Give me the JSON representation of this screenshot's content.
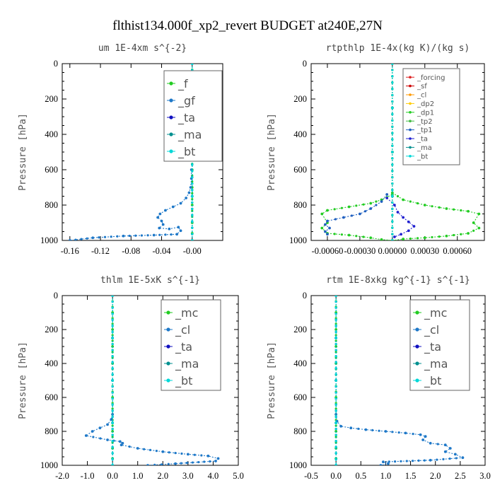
{
  "figure_title": "flthist134.000f_xp2_revert  BUDGET at240E,27N",
  "chart_data": [
    {
      "type": "line",
      "title": "um  1E-4xm s^{-2}",
      "ylabel": "Pressure [hPa]",
      "xlim": [
        -0.17,
        0.04
      ],
      "ylim": [
        1000,
        0
      ],
      "xticks": [
        -0.16,
        -0.12,
        -0.08,
        -0.04,
        0.0
      ],
      "xtick_labels": [
        "-0.16",
        "-0.12",
        "-0.08",
        "-0.04",
        "-0.00"
      ],
      "yticks": [
        0,
        200,
        400,
        600,
        800,
        1000
      ],
      "legend_position": "top-right",
      "series": [
        {
          "name": "_f",
          "color": "#22cc22",
          "x": [
            0,
            0,
            0,
            0,
            0,
            0,
            0,
            0,
            0,
            0,
            0,
            0
          ],
          "y": [
            0,
            100,
            200,
            300,
            400,
            500,
            600,
            700,
            800,
            900,
            960,
            1000
          ]
        },
        {
          "name": "_gf",
          "color": "#1e78c8",
          "x": [
            -0.001,
            -0.001,
            -0.002,
            -0.004,
            -0.008,
            -0.015,
            -0.025,
            -0.035,
            -0.042,
            -0.045,
            -0.04,
            -0.038,
            -0.043,
            -0.03,
            -0.018,
            -0.015,
            -0.02,
            -0.05,
            -0.09,
            -0.13,
            -0.16
          ],
          "y": [
            600,
            650,
            700,
            730,
            760,
            790,
            810,
            830,
            850,
            870,
            890,
            910,
            930,
            935,
            925,
            945,
            965,
            970,
            975,
            985,
            1000
          ]
        },
        {
          "name": "_ta",
          "color": "#1010c0",
          "x": [
            0,
            0,
            0,
            0,
            0
          ],
          "y": [
            0,
            250,
            500,
            750,
            1000
          ]
        },
        {
          "name": "_ma",
          "color": "#009090",
          "x": [
            0,
            0,
            0,
            0,
            0
          ],
          "y": [
            0,
            250,
            500,
            750,
            1000
          ]
        },
        {
          "name": "_bt",
          "color": "#00d8d8",
          "x": [
            0,
            0,
            0,
            0,
            0
          ],
          "y": [
            0,
            250,
            500,
            750,
            1000
          ]
        }
      ]
    },
    {
      "type": "line",
      "title": "rtpthlp  1E-4x(kg K)/(kg s)",
      "ylabel": "Pressure [hPa]",
      "xlim": [
        -0.00075,
        0.00085
      ],
      "ylim": [
        1000,
        0
      ],
      "xticks": [
        -0.0006,
        -0.0003,
        0.0,
        0.0003,
        0.0006
      ],
      "xtick_labels": [
        "-0.00060",
        "-0.00030",
        "0.00000",
        "0.00030",
        "0.00060"
      ],
      "yticks": [
        0,
        200,
        400,
        600,
        800,
        1000
      ],
      "legend_position": "top-right",
      "series": [
        {
          "name": "_forcing",
          "color": "#dd2222",
          "x": [
            0,
            0,
            0,
            0,
            0
          ],
          "y": [
            0,
            250,
            500,
            750,
            1000
          ]
        },
        {
          "name": "_sf",
          "color": "#cc0000",
          "x": [
            0,
            0,
            0,
            0,
            0
          ],
          "y": [
            0,
            250,
            500,
            750,
            1000
          ]
        },
        {
          "name": "_cl",
          "color": "#ff9900",
          "x": [
            0,
            0,
            0,
            0,
            0
          ],
          "y": [
            0,
            250,
            500,
            750,
            1000
          ]
        },
        {
          "name": "_dp2",
          "color": "#ffcc00",
          "x": [
            0,
            0,
            0,
            0,
            0
          ],
          "y": [
            0,
            250,
            500,
            750,
            1000
          ]
        },
        {
          "name": "_dp1",
          "color": "#22cc22",
          "x": [
            0,
            0.0001,
            0.0003,
            0.0005,
            0.0007,
            0.0008,
            0.00075,
            0.0008,
            0.0007,
            0.0005,
            0.0003,
            0.0001,
            0,
            -0.0001,
            -0.0002,
            -0.0004,
            -0.0006,
            -0.00065,
            -0.0006,
            -0.00065,
            -0.0006,
            -0.0004,
            -0.0002,
            -0.0001,
            0
          ],
          "y": [
            730,
            770,
            800,
            820,
            835,
            850,
            900,
            930,
            960,
            975,
            985,
            992,
            1000,
            995,
            985,
            970,
            960,
            930,
            900,
            850,
            830,
            810,
            790,
            770,
            740
          ]
        },
        {
          "name": "_tp2",
          "color": "#44bb44",
          "x": [
            0,
            0,
            0,
            0,
            0
          ],
          "y": [
            0,
            250,
            500,
            750,
            1000
          ]
        },
        {
          "name": "_tp1",
          "color": "#2060c0",
          "x": [
            -5e-05,
            -0.0001,
            -0.0002,
            -0.0003,
            -0.00045,
            -0.0006,
            -0.00062,
            -0.00058,
            -0.00062,
            -0.0006
          ],
          "y": [
            740,
            780,
            820,
            850,
            870,
            890,
            910,
            930,
            950,
            965
          ]
        },
        {
          "name": "_ta",
          "color": "#2020d0",
          "x": [
            -5e-05,
            2e-05,
            5e-05,
            0.0001,
            0.00015,
            0.0002,
            0.00015,
            8e-05,
            2e-05
          ],
          "y": [
            760,
            800,
            840,
            870,
            895,
            920,
            945,
            965,
            980
          ]
        },
        {
          "name": "_ma",
          "color": "#009090",
          "x": [
            0,
            0,
            0,
            0,
            0
          ],
          "y": [
            0,
            250,
            500,
            750,
            1000
          ]
        },
        {
          "name": "_bt",
          "color": "#00d8d8",
          "x": [
            0,
            0,
            0,
            0,
            0
          ],
          "y": [
            0,
            250,
            500,
            750,
            1000
          ]
        }
      ]
    },
    {
      "type": "line",
      "title": "thlm  1E-5xK s^{-1}",
      "ylabel": "Pressure [hPa]",
      "xlim": [
        -2.0,
        5.0
      ],
      "ylim": [
        1000,
        0
      ],
      "xticks": [
        -2.0,
        -1.0,
        0.0,
        1.0,
        2.0,
        3.0,
        4.0,
        5.0
      ],
      "xtick_labels": [
        "-2.0",
        "-1.0",
        "0.0",
        "1.0",
        "2.0",
        "3.0",
        "4.0",
        "5.0"
      ],
      "yticks": [
        0,
        200,
        400,
        600,
        800,
        1000
      ],
      "legend_position": "top-right",
      "series": [
        {
          "name": "_mc",
          "color": "#22cc22",
          "x": [
            0,
            0,
            0,
            0,
            0,
            0,
            0,
            0,
            0,
            0,
            0,
            0
          ],
          "y": [
            0,
            100,
            200,
            300,
            400,
            500,
            600,
            700,
            800,
            900,
            960,
            1000
          ]
        },
        {
          "name": "_cl",
          "color": "#1e78c8",
          "x": [
            0,
            -0.05,
            -0.2,
            -0.5,
            -0.8,
            -1.05,
            -0.2,
            0.3,
            0.4,
            0.35,
            1.0,
            2.0,
            3.0,
            3.8,
            4.2,
            4.1,
            2.5,
            1.4
          ],
          "y": [
            700,
            730,
            760,
            780,
            800,
            825,
            850,
            860,
            870,
            880,
            900,
            920,
            935,
            945,
            960,
            975,
            990,
            1000
          ]
        },
        {
          "name": "_ta",
          "color": "#1010c0",
          "x": [
            0,
            0,
            0,
            0,
            0
          ],
          "y": [
            0,
            250,
            500,
            750,
            1000
          ]
        },
        {
          "name": "_ma",
          "color": "#009090",
          "x": [
            0,
            0,
            0,
            0,
            0
          ],
          "y": [
            0,
            250,
            500,
            750,
            1000
          ]
        },
        {
          "name": "_bt",
          "color": "#00d8d8",
          "x": [
            0,
            0,
            0,
            0,
            0
          ],
          "y": [
            0,
            250,
            500,
            750,
            1000
          ]
        }
      ]
    },
    {
      "type": "line",
      "title": "rtm  1E-8xkg kg^{-1} s^{-1}",
      "ylabel": "Pressure [hPa]",
      "xlim": [
        -0.5,
        3.0
      ],
      "ylim": [
        1000,
        0
      ],
      "xticks": [
        -0.5,
        0.0,
        0.5,
        1.0,
        1.5,
        2.0,
        2.5,
        3.0
      ],
      "xtick_labels": [
        "-0.5",
        "0.0",
        "0.5",
        "1.0",
        "1.5",
        "2.0",
        "2.5",
        "3.0"
      ],
      "yticks": [
        0,
        200,
        400,
        600,
        800,
        1000
      ],
      "legend_position": "top-right",
      "series": [
        {
          "name": "_mc",
          "color": "#22cc22",
          "x": [
            0,
            0,
            0,
            0,
            0,
            0,
            0,
            0,
            0,
            0,
            0,
            0
          ],
          "y": [
            0,
            100,
            200,
            300,
            400,
            500,
            600,
            700,
            800,
            900,
            960,
            1000
          ]
        },
        {
          "name": "_cl",
          "color": "#1e78c8",
          "x": [
            0,
            0.02,
            0.1,
            0.3,
            0.6,
            1.0,
            1.4,
            1.7,
            1.8,
            1.75,
            1.9,
            2.2,
            2.3,
            2.2,
            2.4,
            2.55,
            1.9,
            0.95,
            1.05,
            0.9
          ],
          "y": [
            700,
            740,
            770,
            780,
            790,
            800,
            810,
            820,
            830,
            850,
            870,
            880,
            900,
            920,
            935,
            955,
            970,
            980,
            990,
            1000
          ]
        },
        {
          "name": "_ta",
          "color": "#1010c0",
          "x": [
            0,
            0,
            0,
            0,
            0
          ],
          "y": [
            0,
            250,
            500,
            750,
            1000
          ]
        },
        {
          "name": "_ma",
          "color": "#009090",
          "x": [
            0,
            0,
            0,
            0,
            0
          ],
          "y": [
            0,
            250,
            500,
            750,
            1000
          ]
        },
        {
          "name": "_bt",
          "color": "#00d8d8",
          "x": [
            0,
            0,
            0,
            0,
            0
          ],
          "y": [
            0,
            250,
            500,
            750,
            1000
          ]
        }
      ]
    }
  ]
}
